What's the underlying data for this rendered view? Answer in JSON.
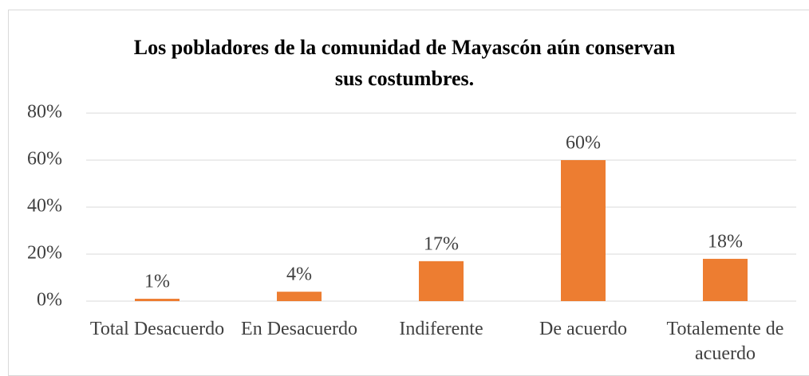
{
  "chart_data": {
    "type": "bar",
    "title": "Los pobladores de la comunidad de Mayascón aún conservan sus costumbres.",
    "categories": [
      "Total Desacuerdo",
      "En Desacuerdo",
      "Indiferente",
      "De acuerdo",
      "Totalemente de acuerdo"
    ],
    "values": [
      1,
      4,
      17,
      60,
      18
    ],
    "value_labels": [
      "1%",
      "4%",
      "17%",
      "60%",
      "18%"
    ],
    "color": "#ed7d31",
    "ylim": [
      0,
      80
    ],
    "yticks": [
      {
        "value": 0,
        "label": "0%"
      },
      {
        "value": 20,
        "label": "20%"
      },
      {
        "value": 40,
        "label": "40%"
      },
      {
        "value": 60,
        "label": "60%"
      },
      {
        "value": 80,
        "label": "80%"
      }
    ],
    "grid": true
  }
}
